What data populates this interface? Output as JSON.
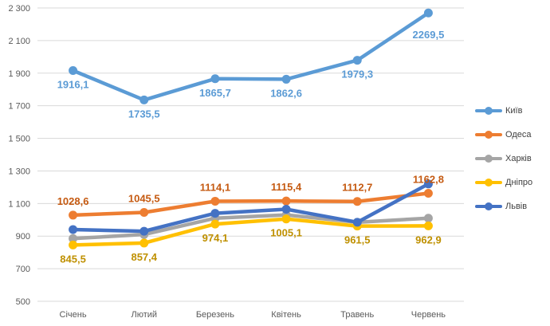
{
  "chart_data": {
    "type": "line",
    "categories": [
      "Січень",
      "Лютий",
      "Березень",
      "Квітень",
      "Травень",
      "Червень"
    ],
    "ylim": [
      500,
      2300
    ],
    "yticks": [
      500,
      700,
      900,
      1100,
      1300,
      1500,
      1700,
      1900,
      2100,
      2300
    ],
    "yticks_labels": [
      "500",
      "700",
      "900",
      "1 100",
      "1 300",
      "1 500",
      "1 700",
      "1 900",
      "2 100",
      "2 300"
    ],
    "grid": true,
    "legend_position": "right",
    "series": [
      {
        "name": "Київ",
        "color": "#5B9BD5",
        "values": [
          1916.1,
          1735.5,
          1865.7,
          1862.6,
          1979.3,
          2269.5
        ],
        "labels": [
          "1916,1",
          "1735,5",
          "1865,7",
          "1862,6",
          "1979,3",
          "2269,5"
        ],
        "label_color": "#5B9BD5"
      },
      {
        "name": "Одеса",
        "color": "#ED7D31",
        "values": [
          1028.6,
          1045.5,
          1114.1,
          1115.4,
          1112.7,
          1162.8
        ],
        "labels": [
          "1028,6",
          "1045,5",
          "1114,1",
          "1115,4",
          "1112,7",
          "1162,8"
        ],
        "label_color": "#C55A11"
      },
      {
        "name": "Харків",
        "color": "#A5A5A5",
        "values": [
          885,
          910,
          1010,
          1030,
          985,
          1010
        ]
      },
      {
        "name": "Дніпро",
        "color": "#FFC000",
        "values": [
          845.5,
          857.4,
          974.1,
          1005.1,
          961.5,
          962.9
        ],
        "labels": [
          "845,5",
          "857,4",
          "974,1",
          "1005,1",
          "961,5",
          "962,9"
        ],
        "label_color": "#BF9000"
      },
      {
        "name": "Львів",
        "color": "#4472C4",
        "values": [
          940,
          930,
          1040,
          1065,
          985,
          1220
        ]
      }
    ]
  }
}
